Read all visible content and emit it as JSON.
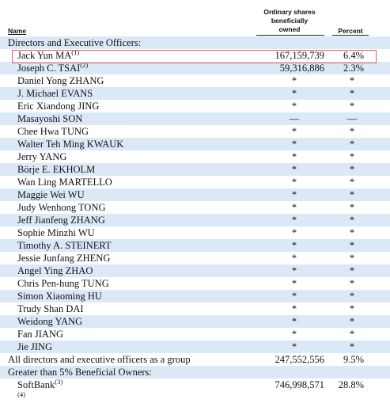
{
  "header": {
    "name": "Name",
    "shares_line1": "Ordinary shares",
    "shares_line2": "beneficially",
    "shares_line3": "owned",
    "percent": "Percent"
  },
  "section_directors": "Directors and Executive Officers:",
  "directors": [
    {
      "name": "Jack Yun MA",
      "note": "(1)",
      "shares": "167,159,739",
      "percent": "6.4%",
      "shade": false
    },
    {
      "name": "Joseph C. TSAI",
      "note": "(2)",
      "shares": "59,316,886",
      "percent": "2.3%",
      "shade": true
    },
    {
      "name": "Daniel Yong ZHANG",
      "note": "",
      "shares": "*",
      "percent": "*",
      "shade": false
    },
    {
      "name": "J. Michael EVANS",
      "note": "",
      "shares": "*",
      "percent": "*",
      "shade": true
    },
    {
      "name": "Eric Xiandong JING",
      "note": "",
      "shares": "*",
      "percent": "*",
      "shade": false
    },
    {
      "name": "Masayoshi SON",
      "note": "",
      "shares": "—",
      "percent": "—",
      "shade": true
    },
    {
      "name": "Chee Hwa TUNG",
      "note": "",
      "shares": "*",
      "percent": "*",
      "shade": false
    },
    {
      "name": "Walter Teh Ming KWAUK",
      "note": "",
      "shares": "*",
      "percent": "*",
      "shade": true
    },
    {
      "name": "Jerry YANG",
      "note": "",
      "shares": "*",
      "percent": "*",
      "shade": false
    },
    {
      "name": "Börje E. EKHOLM",
      "note": "",
      "shares": "*",
      "percent": "*",
      "shade": true
    },
    {
      "name": "Wan Ling MARTELLO",
      "note": "",
      "shares": "*",
      "percent": "*",
      "shade": false
    },
    {
      "name": "Maggie Wei WU",
      "note": "",
      "shares": "*",
      "percent": "*",
      "shade": true
    },
    {
      "name": "Judy Wenhong TONG",
      "note": "",
      "shares": "*",
      "percent": "*",
      "shade": false
    },
    {
      "name": "Jeff Jianfeng ZHANG",
      "note": "",
      "shares": "*",
      "percent": "*",
      "shade": true
    },
    {
      "name": "Sophie Minzhi WU",
      "note": "",
      "shares": "*",
      "percent": "*",
      "shade": false
    },
    {
      "name": "Timothy A. STEINERT",
      "note": "",
      "shares": "*",
      "percent": "*",
      "shade": true
    },
    {
      "name": "Jessie Junfang ZHENG",
      "note": "",
      "shares": "*",
      "percent": "*",
      "shade": false
    },
    {
      "name": "Angel Ying ZHAO",
      "note": "",
      "shares": "*",
      "percent": "*",
      "shade": true
    },
    {
      "name": "Chris Pen-hung TUNG",
      "note": "",
      "shares": "*",
      "percent": "*",
      "shade": false
    },
    {
      "name": "Simon Xiaoming HU",
      "note": "",
      "shares": "*",
      "percent": "*",
      "shade": true
    },
    {
      "name": "Trudy Shan DAI",
      "note": "",
      "shares": "*",
      "percent": "*",
      "shade": false
    },
    {
      "name": "Weidong YANG",
      "note": "",
      "shares": "*",
      "percent": "*",
      "shade": true
    },
    {
      "name": "Fan JIANG",
      "note": "",
      "shares": "*",
      "percent": "*",
      "shade": false
    },
    {
      "name": "Jie JING",
      "note": "",
      "shares": "*",
      "percent": "*",
      "shade": true
    }
  ],
  "group_total": {
    "name": "All directors and executive officers as a group",
    "shares": "247,552,556",
    "percent": "9.5%"
  },
  "section_owners": "Greater than 5% Beneficial Owners:",
  "owners": [
    {
      "name": "SoftBank",
      "note": "(3)",
      "shares": "746,998,571",
      "percent": "28.8%"
    },
    {
      "name": "",
      "note": "(4)",
      "shares": "",
      "percent": ""
    }
  ]
}
